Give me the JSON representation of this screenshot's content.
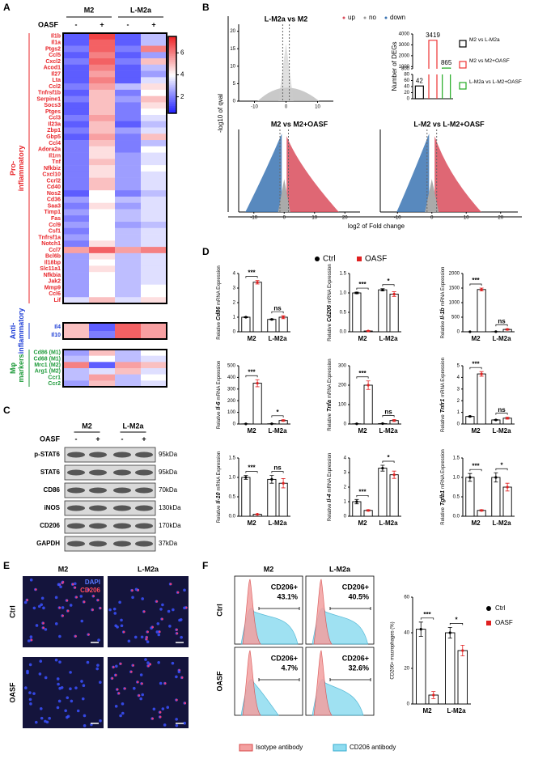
{
  "panel_labels": [
    "A",
    "B",
    "C",
    "D",
    "E",
    "F"
  ],
  "chart_data": [
    {
      "type": "heatmap",
      "col_groups": [
        "M2",
        "L-M2a"
      ],
      "col_factor": "OASF",
      "col_levels": [
        "-",
        "+",
        "-",
        "+"
      ],
      "zlim": [
        0.5,
        7.5
      ],
      "zticks": [
        2,
        4,
        6
      ],
      "colors": [
        "#1c1cff",
        "#ffffff",
        "#ee2226"
      ],
      "row_groups": [
        {
          "label_lines": [
            "Pro-",
            "inflammatory"
          ],
          "label_color": "#e8252a",
          "rows": [
            "Il1b",
            "Il1a",
            "Ptgs2",
            "Ccl5",
            "Cxcl2",
            "Acod1",
            "Il27",
            "Lta",
            "Ccl2",
            "Tnfrsf1b",
            "Serpine1",
            "Socs3",
            "Ptges",
            "Ccl3",
            "Il23a",
            "Zbp1",
            "Gbp5",
            "Ccl4",
            "Adora2a",
            "Il1rn",
            "Tnf",
            "Nfkbiz",
            "Cxcl10",
            "Ccrl2",
            "Cd40",
            "Nos2",
            "Cd36",
            "Saa3",
            "Timp1",
            "Fas",
            "Ccl9",
            "Csf1",
            "Tnfrsf1a",
            "Notch1",
            "Ccl7",
            "Bcl6b",
            "Il18bp",
            "Slc11a1",
            "Nfkbia",
            "Jak2",
            "Mmp9",
            "Ccl6",
            "Lif"
          ],
          "values": [
            [
              1.5,
              7,
              1.5,
              3
            ],
            [
              1.5,
              6.5,
              1.5,
              3
            ],
            [
              2,
              6.5,
              2,
              6
            ],
            [
              1.5,
              6,
              1.5,
              2.5
            ],
            [
              2,
              6.5,
              2,
              5
            ],
            [
              1.5,
              6,
              1.5,
              3
            ],
            [
              1.5,
              5.5,
              1.5,
              2.5
            ],
            [
              1.5,
              6,
              1.5,
              3.5
            ],
            [
              2,
              5.5,
              3,
              4.5
            ],
            [
              1.5,
              5,
              2,
              4
            ],
            [
              2,
              5,
              2.5,
              5
            ],
            [
              1.5,
              5,
              2,
              4.5
            ],
            [
              1.5,
              5,
              2,
              4
            ],
            [
              2,
              5.5,
              2,
              3.5
            ],
            [
              1.5,
              5,
              1.5,
              3
            ],
            [
              2,
              5,
              2.5,
              3.5
            ],
            [
              1.5,
              5.5,
              2,
              5
            ],
            [
              2,
              5,
              2,
              3
            ],
            [
              2,
              4.5,
              2,
              4
            ],
            [
              2,
              4.5,
              2.5,
              3.5
            ],
            [
              2,
              5,
              2.5,
              3.5
            ],
            [
              2,
              4.5,
              2.5,
              4
            ],
            [
              2,
              4.5,
              2.5,
              3.5
            ],
            [
              2,
              5,
              2.5,
              3.5
            ],
            [
              2,
              5,
              2.5,
              3.5
            ],
            [
              1.5,
              4,
              2,
              3
            ],
            [
              2.5,
              4,
              3,
              3.5
            ],
            [
              2,
              4.5,
              2.5,
              3.5
            ],
            [
              2.5,
              4,
              3,
              3.5
            ],
            [
              2,
              4,
              3,
              3.5
            ],
            [
              2.5,
              4,
              2.5,
              3
            ],
            [
              2,
              4,
              3,
              3.5
            ],
            [
              2.5,
              4,
              3,
              3.5
            ],
            [
              2,
              4.5,
              3,
              3.5
            ],
            [
              5.5,
              6.5,
              5.5,
              6
            ],
            [
              2.5,
              4.5,
              3,
              3.5
            ],
            [
              2.5,
              4,
              3,
              3.5
            ],
            [
              2.5,
              4.5,
              3,
              3.5
            ],
            [
              2.5,
              4,
              3,
              3.5
            ],
            [
              2.5,
              4,
              3,
              3.5
            ],
            [
              2.5,
              4,
              3,
              4
            ],
            [
              2.5,
              4,
              3,
              4
            ],
            [
              3.5,
              5,
              3.5,
              4.5
            ]
          ]
        },
        {
          "label_lines": [
            "Anti-",
            "inflammatory"
          ],
          "label_color": "#1f3fd6",
          "rows": [
            "Il4",
            "Il10"
          ],
          "values": [
            [
              5,
              1.5,
              6.5,
              5.5
            ],
            [
              5,
              2,
              6.5,
              5.5
            ]
          ]
        },
        {
          "label_lines": [
            "Mφ",
            "markers"
          ],
          "label_color": "#1e9a3a",
          "rows": [
            "Cd86 (M1)",
            "Cd68 (M1)",
            "Mrc1 (M2)",
            "Arg1 (M2)",
            "Ccr1",
            "Ccr2"
          ],
          "values": [
            [
              2.5,
              5,
              3,
              4
            ],
            [
              3,
              4,
              3,
              3.5
            ],
            [
              6,
              1.5,
              5.5,
              5
            ],
            [
              3,
              3.5,
              5,
              3.5
            ],
            [
              3,
              5.5,
              3,
              4
            ],
            [
              2.5,
              5,
              3,
              3.5
            ]
          ]
        }
      ]
    },
    {
      "type": "volcano",
      "title": "L-M2a vs M2",
      "xlim": [
        -15,
        15
      ],
      "xticks": [
        -10,
        0,
        10
      ],
      "ylim": [
        0,
        22
      ],
      "yticks": [
        0,
        5,
        10,
        15,
        20
      ],
      "ylabel": "-log10 of qval",
      "xlabel": "log2 of Fold change",
      "legend": [
        {
          "name": "up",
          "color": "#d94c5c"
        },
        {
          "name": "no",
          "color": "#999999"
        },
        {
          "name": "down",
          "color": "#3b74b3"
        }
      ]
    },
    {
      "type": "volcano",
      "title": "M2 vs M2+OASF",
      "xlim": [
        -15,
        25
      ],
      "xticks": [
        -10,
        0,
        10,
        20
      ]
    },
    {
      "type": "volcano",
      "title": "L-M2 vs L-M2+OASF",
      "xlim": [
        -15,
        25
      ],
      "xticks": [
        -10,
        0,
        10,
        20
      ]
    },
    {
      "type": "broken-bar",
      "ylabel": "Number of DEGs",
      "categories": [
        "M2 vs L-M2a",
        "M2 vs M2+OASF",
        "L-M2a vs L-M2+OASF"
      ],
      "values": [
        42,
        3419,
        865
      ],
      "colors": [
        "#000000",
        "#ee3333",
        "#22aa22"
      ],
      "ylim": [
        0,
        4000
      ],
      "ybreak": [
        80,
        800
      ],
      "yticks": [
        0,
        20,
        40,
        60,
        80,
        800,
        1000,
        2000,
        3000,
        4000
      ]
    },
    {
      "type": "bar",
      "ylabel_prefix": "Relative",
      "ylabel_gene": "Cd86",
      "ylabel_suffix": "mRNA Expression",
      "categories": [
        "M2",
        "L-M2a"
      ],
      "series": [
        {
          "name": "Ctrl",
          "color": "#000000",
          "values": [
            1.0,
            0.85
          ],
          "errors": [
            0.03,
            0.03
          ]
        },
        {
          "name": "OASF",
          "color": "#e02020",
          "values": [
            3.4,
            1.0
          ],
          "errors": [
            0.12,
            0.1
          ]
        }
      ],
      "significance": [
        "***",
        "ns"
      ],
      "ylim": [
        0,
        4
      ],
      "yticks": [
        0,
        1,
        2,
        3,
        4
      ]
    },
    {
      "type": "bar",
      "ylabel_prefix": "Relative",
      "ylabel_gene": "Cd206",
      "ylabel_suffix": "mRNA Expression",
      "categories": [
        "M2",
        "L-M2a"
      ],
      "series": [
        {
          "color": "#000000",
          "values": [
            1.0,
            1.08
          ],
          "errors": [
            0.02,
            0.03
          ]
        },
        {
          "color": "#e02020",
          "values": [
            0.02,
            0.97
          ],
          "errors": [
            0.01,
            0.06
          ]
        }
      ],
      "significance": [
        "***",
        "*"
      ],
      "ylim": [
        0,
        1.5
      ],
      "yticks": [
        {
          "value": 0,
          "label": "0.0"
        },
        0.5,
        {
          "value": 1,
          "label": "1.0"
        },
        1.5
      ]
    },
    {
      "type": "bar",
      "ylabel_prefix": "Relative",
      "ylabel_gene": "Il-1b",
      "ylabel_suffix": "mRNA Expression",
      "categories": [
        "M2",
        "L-M2a"
      ],
      "series": [
        {
          "color": "#000000",
          "values": [
            1,
            5
          ],
          "errors": [
            1,
            2
          ]
        },
        {
          "color": "#e02020",
          "values": [
            1450,
            80
          ],
          "errors": [
            50,
            25
          ]
        }
      ],
      "significance": [
        "***",
        "ns"
      ],
      "ylim": [
        0,
        2000
      ],
      "yticks": [
        0,
        500,
        1000,
        1500,
        2000
      ]
    },
    {
      "type": "bar",
      "ylabel_prefix": "Relative",
      "ylabel_gene": "Il-6",
      "ylabel_suffix": "mRNA Expression",
      "categories": [
        "M2",
        "L-M2a"
      ],
      "series": [
        {
          "color": "#000000",
          "values": [
            1,
            2
          ],
          "errors": [
            1,
            1
          ]
        },
        {
          "color": "#e02020",
          "values": [
            350,
            30
          ],
          "errors": [
            30,
            6
          ]
        }
      ],
      "significance": [
        "***",
        "*"
      ],
      "ylim": [
        0,
        500
      ],
      "yticks": [
        0,
        100,
        200,
        300,
        400,
        500
      ]
    },
    {
      "type": "bar",
      "ylabel_prefix": "Relative",
      "ylabel_gene": "Tnfa",
      "ylabel_suffix": "mRNA Expression",
      "categories": [
        "M2",
        "L-M2a"
      ],
      "series": [
        {
          "color": "#000000",
          "values": [
            1,
            2
          ],
          "errors": [
            1,
            1
          ]
        },
        {
          "color": "#e02020",
          "values": [
            200,
            18
          ],
          "errors": [
            22,
            5
          ]
        }
      ],
      "significance": [
        "***",
        "ns"
      ],
      "ylim": [
        0,
        300
      ],
      "yticks": [
        0,
        100,
        200,
        300
      ]
    },
    {
      "type": "bar",
      "ylabel_prefix": "Relative",
      "ylabel_gene": "Tnfr1",
      "ylabel_suffix": "mRNA Expression",
      "categories": [
        "M2",
        "L-M2a"
      ],
      "series": [
        {
          "color": "#000000",
          "values": [
            0.65,
            0.35
          ],
          "errors": [
            0.03,
            0.03
          ]
        },
        {
          "color": "#e02020",
          "values": [
            4.3,
            0.5
          ],
          "errors": [
            0.2,
            0.08
          ]
        }
      ],
      "significance": [
        "***",
        "ns"
      ],
      "ylim": [
        0,
        5
      ],
      "yticks": [
        0,
        1,
        2,
        3,
        4,
        5
      ]
    },
    {
      "type": "bar",
      "ylabel_prefix": "Relative",
      "ylabel_gene": "Il-10",
      "ylabel_suffix": "mRNA Expression",
      "categories": [
        "M2",
        "L-M2a"
      ],
      "series": [
        {
          "color": "#000000",
          "values": [
            1.0,
            0.95
          ],
          "errors": [
            0.05,
            0.1
          ]
        },
        {
          "color": "#e02020",
          "values": [
            0.05,
            0.85
          ],
          "errors": [
            0.01,
            0.12
          ]
        }
      ],
      "significance": [
        "***",
        "ns"
      ],
      "ylim": [
        0,
        1.5
      ],
      "yticks": [
        {
          "value": 0,
          "label": "0.0"
        },
        0.5,
        {
          "value": 1,
          "label": "1.0"
        },
        1.5
      ]
    },
    {
      "type": "bar",
      "ylabel_prefix": "Relative",
      "ylabel_gene": "Il-4",
      "ylabel_suffix": "mRNA Expression",
      "categories": [
        "M2",
        "L-M2a"
      ],
      "series": [
        {
          "color": "#000000",
          "values": [
            1.0,
            3.3
          ],
          "errors": [
            0.15,
            0.2
          ]
        },
        {
          "color": "#e02020",
          "values": [
            0.4,
            2.85
          ],
          "errors": [
            0.05,
            0.25
          ]
        }
      ],
      "significance": [
        "***",
        "*"
      ],
      "ylim": [
        0,
        4
      ],
      "yticks": [
        0,
        1,
        2,
        3,
        4
      ]
    },
    {
      "type": "bar",
      "ylabel_prefix": "Relative",
      "ylabel_gene": "Tgfb1",
      "ylabel_suffix": "mRNA Expression",
      "categories": [
        "M2",
        "L-M2a"
      ],
      "series": [
        {
          "color": "#000000",
          "values": [
            1.0,
            1.0
          ],
          "errors": [
            0.1,
            0.12
          ]
        },
        {
          "color": "#e02020",
          "values": [
            0.15,
            0.75
          ],
          "errors": [
            0.02,
            0.1
          ]
        }
      ],
      "significance": [
        "***",
        "*"
      ],
      "ylim": [
        0,
        1.5
      ],
      "yticks": [
        {
          "value": 0,
          "label": "0.0"
        },
        0.5,
        {
          "value": 1,
          "label": "1.0"
        },
        1.5
      ]
    },
    {
      "type": "bar",
      "ylabel": "CD206+ macrophages (%)",
      "categories": [
        "M2",
        "L-M2a"
      ],
      "series": [
        {
          "name": "Ctrl",
          "color": "#000000",
          "values": [
            42,
            40
          ],
          "errors": [
            4,
            3
          ]
        },
        {
          "name": "OASF",
          "color": "#e02020",
          "values": [
            5,
            30
          ],
          "errors": [
            2,
            3
          ]
        }
      ],
      "significance": [
        "***",
        "*"
      ],
      "ylim": [
        0,
        60
      ],
      "yticks": [
        0,
        20,
        40,
        60
      ]
    }
  ],
  "western": {
    "groups": [
      "M2",
      "L-M2a"
    ],
    "factor": "OASF",
    "levels": [
      "-",
      "+",
      "-",
      "+"
    ],
    "rows": [
      {
        "name": "p-STAT6",
        "size": "95kDa"
      },
      {
        "name": "STAT6",
        "size": "95kDa"
      },
      {
        "name": "CD86",
        "size": "70kDa"
      },
      {
        "name": "iNOS",
        "size": "130kDa"
      },
      {
        "name": "CD206",
        "size": "170kDa"
      },
      {
        "name": "GAPDH",
        "size": "37kDa"
      }
    ]
  },
  "immunofluorescence": {
    "columns": [
      "M2",
      "L-M2a"
    ],
    "rows": [
      "Ctrl",
      "OASF"
    ],
    "channels": [
      "DAPI",
      "CD206"
    ]
  },
  "flow": {
    "columns": [
      "M2",
      "L-M2a"
    ],
    "rows": [
      "Ctrl",
      "OASF"
    ],
    "gate": "CD206+",
    "percents": [
      [
        "43.1%",
        "40.5%"
      ],
      [
        "4.7%",
        "32.6%"
      ]
    ],
    "legend": [
      "Isotype antibody",
      "CD206 antibody"
    ]
  }
}
